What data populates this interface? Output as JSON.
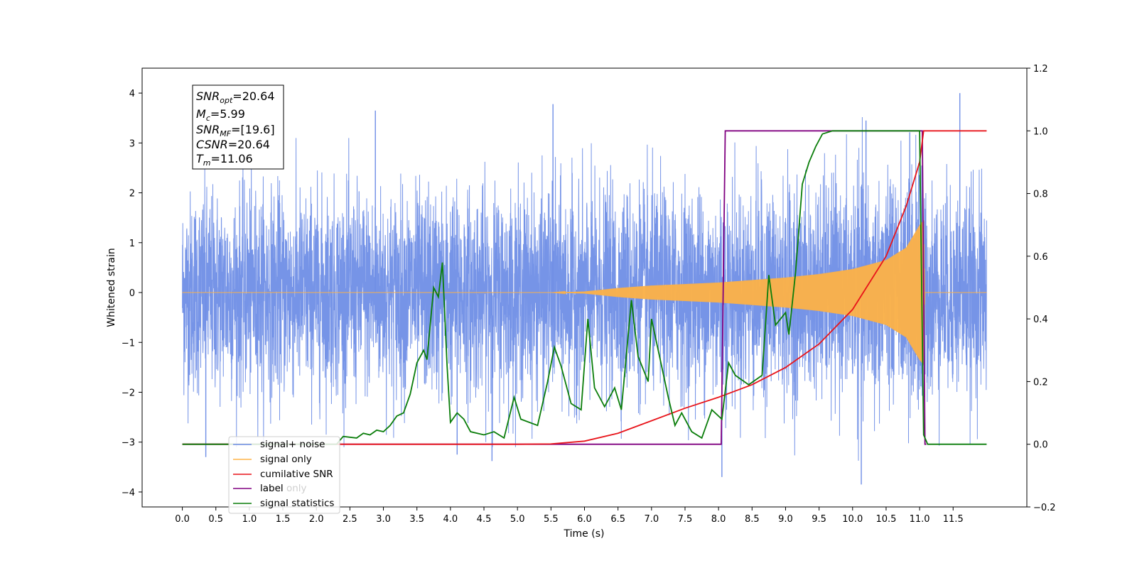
{
  "chart_data": {
    "type": "line",
    "xlabel": "Time (s)",
    "ylabel": "Whitened strain",
    "xlim": [
      -0.6,
      12.6
    ],
    "ylim": [
      -4.3,
      4.5
    ],
    "ylim_right": [
      -0.2,
      1.2
    ],
    "x_ticks": [
      "0.0",
      "0.5",
      "1.0",
      "1.5",
      "2.0",
      "2.5",
      "3.0",
      "3.5",
      "4.0",
      "4.5",
      "5.0",
      "5.5",
      "6.0",
      "6.5",
      "7.0",
      "7.5",
      "8.0",
      "8.5",
      "9.0",
      "9.5",
      "10.0",
      "10.5",
      "11.0",
      "11.5"
    ],
    "x_tick_values": [
      0.0,
      0.5,
      1.0,
      1.5,
      2.0,
      2.5,
      3.0,
      3.5,
      4.0,
      4.5,
      5.0,
      5.5,
      6.0,
      6.5,
      7.0,
      7.5,
      8.0,
      8.5,
      9.0,
      9.5,
      10.0,
      10.5,
      11.0,
      11.5
    ],
    "y_ticks": [
      "4",
      "3",
      "2",
      "1",
      "0",
      "−1",
      "−2",
      "−3",
      "−4"
    ],
    "y_tick_values": [
      4,
      3,
      2,
      1,
      0,
      -1,
      -2,
      -3,
      -4
    ],
    "y2_ticks": [
      "1.2",
      "1.0",
      "0.8",
      "0.6",
      "0.4",
      "0.2",
      "0.0",
      "−0.2"
    ],
    "y2_tick_values": [
      1.2,
      1.0,
      0.8,
      0.6,
      0.4,
      0.2,
      0.0,
      -0.2
    ],
    "grid": false,
    "legend_position": "lower-left",
    "annotation": {
      "snr_opt": "20.64",
      "mc": "5.99",
      "snr_mf": "[19.6]",
      "csnr": "20.64",
      "tm": "11.06"
    },
    "series": [
      {
        "name": "signal+ noise",
        "color": "#6f8ee6",
        "axis": "left",
        "t_start": 0.0,
        "t_end": 12.0,
        "typical_spread": 1.0,
        "peak_values": [
          {
            "x": 5.53,
            "y": 3.78
          },
          {
            "x": 11.6,
            "y": 4.0
          },
          {
            "x": 2.88,
            "y": 3.65
          },
          {
            "x": 0.35,
            "y": -3.3
          },
          {
            "x": 4.1,
            "y": -3.25
          },
          {
            "x": 4.62,
            "y": -3.38
          },
          {
            "x": 8.05,
            "y": -3.7
          },
          {
            "x": 10.13,
            "y": -3.85
          },
          {
            "x": 10.2,
            "y": 3.45
          }
        ]
      },
      {
        "name": "signal only",
        "color": "#ffb347",
        "axis": "left",
        "chirp_amplitude": [
          {
            "x": 0.0,
            "y": 0.0
          },
          {
            "x": 5.5,
            "y": 0.0
          },
          {
            "x": 6.0,
            "y": 0.02
          },
          {
            "x": 6.5,
            "y": 0.09
          },
          {
            "x": 7.0,
            "y": 0.14
          },
          {
            "x": 7.5,
            "y": 0.17
          },
          {
            "x": 8.0,
            "y": 0.2
          },
          {
            "x": 8.5,
            "y": 0.25
          },
          {
            "x": 9.0,
            "y": 0.3
          },
          {
            "x": 9.5,
            "y": 0.37
          },
          {
            "x": 10.0,
            "y": 0.47
          },
          {
            "x": 10.5,
            "y": 0.65
          },
          {
            "x": 10.8,
            "y": 0.9
          },
          {
            "x": 11.0,
            "y": 1.35
          },
          {
            "x": 11.06,
            "y": 1.45
          },
          {
            "x": 11.08,
            "y": 0.0
          },
          {
            "x": 12.0,
            "y": 0.0
          }
        ]
      },
      {
        "name": "cumilative SNR",
        "color": "#e8141a",
        "axis": "right",
        "points": [
          {
            "x": 0.0,
            "y": 0.0
          },
          {
            "x": 5.0,
            "y": 0.0
          },
          {
            "x": 5.5,
            "y": 0.001
          },
          {
            "x": 6.0,
            "y": 0.01
          },
          {
            "x": 6.5,
            "y": 0.035
          },
          {
            "x": 7.0,
            "y": 0.075
          },
          {
            "x": 7.5,
            "y": 0.115
          },
          {
            "x": 8.0,
            "y": 0.15
          },
          {
            "x": 8.5,
            "y": 0.19
          },
          {
            "x": 9.0,
            "y": 0.245
          },
          {
            "x": 9.5,
            "y": 0.32
          },
          {
            "x": 10.0,
            "y": 0.43
          },
          {
            "x": 10.5,
            "y": 0.6
          },
          {
            "x": 10.8,
            "y": 0.76
          },
          {
            "x": 11.0,
            "y": 0.9
          },
          {
            "x": 11.06,
            "y": 1.0
          },
          {
            "x": 12.0,
            "y": 1.0
          }
        ]
      },
      {
        "name": "label",
        "color": "#800080",
        "axis": "right",
        "points": [
          {
            "x": 0.0,
            "y": 0.0
          },
          {
            "x": 8.04,
            "y": 0.0
          },
          {
            "x": 8.1,
            "y": 1.0
          },
          {
            "x": 11.04,
            "y": 1.0
          },
          {
            "x": 11.08,
            "y": 0.0
          },
          {
            "x": 11.1,
            "y": 0.0
          }
        ]
      },
      {
        "name": "label only",
        "color": "#cfcfcf",
        "axis": "right",
        "points": []
      },
      {
        "name": "signal statistics",
        "color": "#0a7d0a",
        "axis": "right",
        "points": [
          {
            "x": 0.0,
            "y": 0.0
          },
          {
            "x": 2.3,
            "y": 0.0
          },
          {
            "x": 2.4,
            "y": 0.025
          },
          {
            "x": 2.6,
            "y": 0.02
          },
          {
            "x": 2.7,
            "y": 0.035
          },
          {
            "x": 2.8,
            "y": 0.03
          },
          {
            "x": 2.9,
            "y": 0.045
          },
          {
            "x": 3.0,
            "y": 0.04
          },
          {
            "x": 3.1,
            "y": 0.06
          },
          {
            "x": 3.2,
            "y": 0.09
          },
          {
            "x": 3.3,
            "y": 0.1
          },
          {
            "x": 3.4,
            "y": 0.16
          },
          {
            "x": 3.5,
            "y": 0.26
          },
          {
            "x": 3.6,
            "y": 0.3
          },
          {
            "x": 3.65,
            "y": 0.27
          },
          {
            "x": 3.75,
            "y": 0.5
          },
          {
            "x": 3.82,
            "y": 0.47
          },
          {
            "x": 3.88,
            "y": 0.58
          },
          {
            "x": 3.95,
            "y": 0.25
          },
          {
            "x": 4.0,
            "y": 0.07
          },
          {
            "x": 4.1,
            "y": 0.1
          },
          {
            "x": 4.2,
            "y": 0.08
          },
          {
            "x": 4.3,
            "y": 0.04
          },
          {
            "x": 4.5,
            "y": 0.03
          },
          {
            "x": 4.65,
            "y": 0.04
          },
          {
            "x": 4.8,
            "y": 0.02
          },
          {
            "x": 4.95,
            "y": 0.15
          },
          {
            "x": 5.05,
            "y": 0.08
          },
          {
            "x": 5.3,
            "y": 0.06
          },
          {
            "x": 5.45,
            "y": 0.2
          },
          {
            "x": 5.55,
            "y": 0.31
          },
          {
            "x": 5.65,
            "y": 0.25
          },
          {
            "x": 5.8,
            "y": 0.13
          },
          {
            "x": 5.95,
            "y": 0.11
          },
          {
            "x": 6.05,
            "y": 0.4
          },
          {
            "x": 6.15,
            "y": 0.18
          },
          {
            "x": 6.3,
            "y": 0.12
          },
          {
            "x": 6.45,
            "y": 0.18
          },
          {
            "x": 6.55,
            "y": 0.11
          },
          {
            "x": 6.7,
            "y": 0.46
          },
          {
            "x": 6.8,
            "y": 0.28
          },
          {
            "x": 6.95,
            "y": 0.2
          },
          {
            "x": 7.0,
            "y": 0.4
          },
          {
            "x": 7.1,
            "y": 0.3
          },
          {
            "x": 7.25,
            "y": 0.15
          },
          {
            "x": 7.35,
            "y": 0.06
          },
          {
            "x": 7.45,
            "y": 0.1
          },
          {
            "x": 7.6,
            "y": 0.04
          },
          {
            "x": 7.75,
            "y": 0.02
          },
          {
            "x": 7.9,
            "y": 0.11
          },
          {
            "x": 8.05,
            "y": 0.08
          },
          {
            "x": 8.15,
            "y": 0.26
          },
          {
            "x": 8.25,
            "y": 0.22
          },
          {
            "x": 8.45,
            "y": 0.19
          },
          {
            "x": 8.65,
            "y": 0.22
          },
          {
            "x": 8.75,
            "y": 0.54
          },
          {
            "x": 8.85,
            "y": 0.38
          },
          {
            "x": 9.0,
            "y": 0.42
          },
          {
            "x": 9.05,
            "y": 0.35
          },
          {
            "x": 9.15,
            "y": 0.55
          },
          {
            "x": 9.25,
            "y": 0.83
          },
          {
            "x": 9.35,
            "y": 0.9
          },
          {
            "x": 9.45,
            "y": 0.95
          },
          {
            "x": 9.55,
            "y": 0.99
          },
          {
            "x": 9.7,
            "y": 1.0
          },
          {
            "x": 11.0,
            "y": 1.0
          },
          {
            "x": 11.06,
            "y": 0.03
          },
          {
            "x": 11.12,
            "y": 0.0
          },
          {
            "x": 12.0,
            "y": 0.0
          }
        ]
      }
    ]
  }
}
